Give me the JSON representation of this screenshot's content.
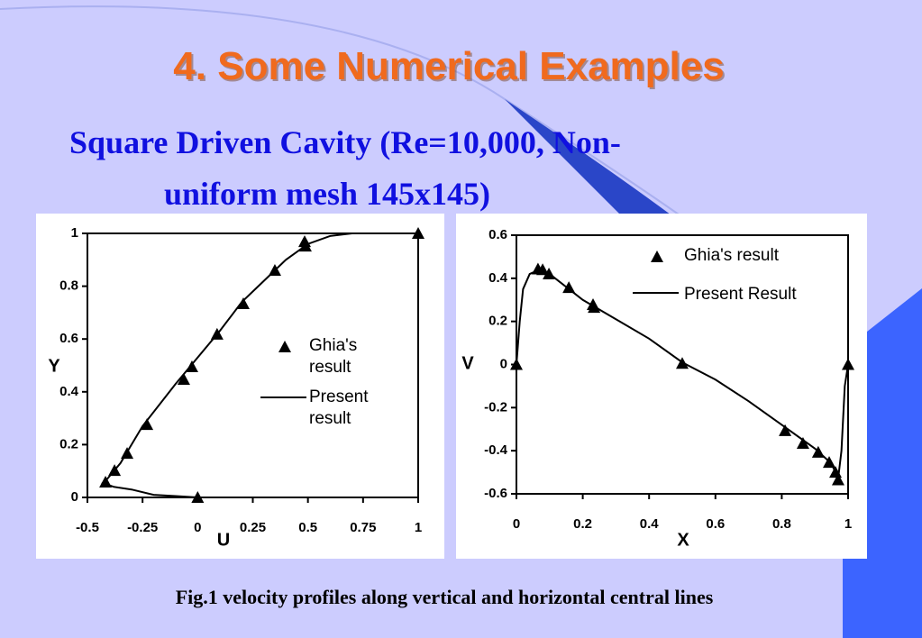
{
  "title": "4. Some Numerical Examples",
  "subtitle": [
    "Square Driven Cavity (Re=10,000, Non-",
    "uniform mesh 145x145)"
  ],
  "caption": "Fig.1 velocity profiles along vertical and horizontal central lines",
  "chart_data": [
    {
      "type": "line",
      "x_label": "U",
      "y_label": "Y",
      "xlim": [
        -0.5,
        1
      ],
      "xticks": [
        -0.5,
        -0.25,
        0,
        0.25,
        0.5,
        0.75,
        1
      ],
      "ylim": [
        0,
        1
      ],
      "yticks": [
        0,
        0.2,
        0.4,
        0.6,
        0.8,
        1
      ],
      "series": [
        {
          "name": "Ghia's result",
          "mode": "markers",
          "color": "#000000",
          "x": [
            0,
            -0.418,
            -0.377,
            -0.32,
            -0.23,
            -0.063,
            -0.026,
            0.088,
            0.207,
            0.35,
            0.485,
            0.489,
            1
          ],
          "values": [
            0,
            0.058,
            0.102,
            0.167,
            0.276,
            0.447,
            0.495,
            0.618,
            0.734,
            0.86,
            0.969,
            0.952,
            1
          ]
        },
        {
          "name": "Present result",
          "mode": "line",
          "color": "#000000",
          "x": [
            0,
            -0.1,
            -0.2,
            -0.3,
            -0.38,
            -0.43,
            -0.41,
            -0.35,
            -0.25,
            -0.1,
            0.1,
            0.2,
            0.3,
            0.4,
            0.5,
            0.6,
            0.7,
            1
          ],
          "values": [
            0,
            0.005,
            0.01,
            0.03,
            0.04,
            0.055,
            0.07,
            0.13,
            0.27,
            0.43,
            0.63,
            0.74,
            0.82,
            0.9,
            0.96,
            0.99,
            1,
            1
          ]
        }
      ]
    },
    {
      "type": "line",
      "x_label": "X",
      "y_label": "V",
      "xlim": [
        0,
        1
      ],
      "xticks": [
        0,
        0.2,
        0.4,
        0.6,
        0.8,
        1
      ],
      "ylim": [
        -0.6,
        0.6
      ],
      "yticks": [
        -0.6,
        -0.4,
        -0.2,
        0,
        0.2,
        0.4,
        0.6
      ],
      "series": [
        {
          "name": "Ghia's result",
          "mode": "markers",
          "color": "#000000",
          "x": [
            0,
            0.065,
            0.079,
            0.098,
            0.158,
            0.231,
            0.234,
            0.5,
            0.81,
            0.864,
            0.91,
            0.943,
            0.962,
            0.97,
            1
          ],
          "values": [
            0,
            0.443,
            0.44,
            0.42,
            0.357,
            0.278,
            0.265,
            0.005,
            -0.307,
            -0.366,
            -0.407,
            -0.454,
            -0.5,
            -0.535,
            0
          ]
        },
        {
          "name": "Present Result",
          "mode": "line",
          "color": "#000000",
          "x": [
            0,
            0.01,
            0.02,
            0.04,
            0.07,
            0.1,
            0.2,
            0.3,
            0.4,
            0.5,
            0.6,
            0.7,
            0.8,
            0.9,
            0.95,
            0.97,
            0.98,
            0.99,
            1
          ],
          "values": [
            0,
            0.2,
            0.35,
            0.42,
            0.44,
            0.42,
            0.3,
            0.21,
            0.12,
            0.01,
            -0.07,
            -0.17,
            -0.28,
            -0.39,
            -0.46,
            -0.53,
            -0.4,
            -0.1,
            0
          ]
        }
      ]
    }
  ]
}
